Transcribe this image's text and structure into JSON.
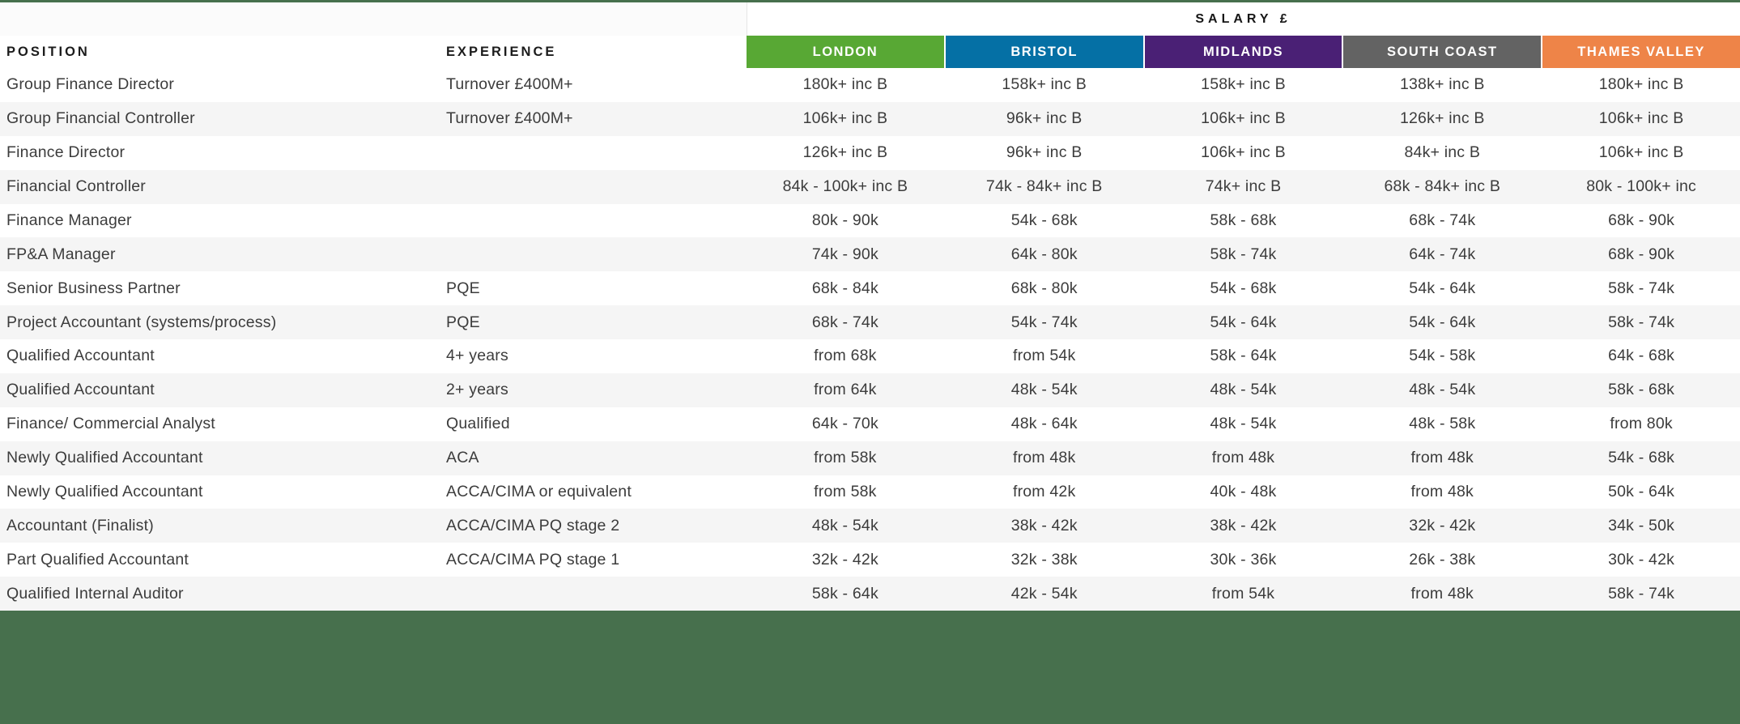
{
  "header": {
    "position_label": "POSITION",
    "experience_label": "EXPERIENCE",
    "salary_label": "SALARY £",
    "regions": [
      {
        "label": "LONDON",
        "color": "#58a834"
      },
      {
        "label": "BRISTOL",
        "color": "#0570a5"
      },
      {
        "label": "MIDLANDS",
        "color": "#4a2075"
      },
      {
        "label": "SOUTH COAST",
        "color": "#636363"
      },
      {
        "label": "THAMES VALLEY",
        "color": "#ee8448"
      }
    ]
  },
  "colors": {
    "top_bar": "#47704d",
    "footer": "#47704d",
    "row_alt": "#f5f5f5"
  },
  "rows": [
    {
      "position": "Group Finance Director",
      "experience": "Turnover £400M+",
      "salaries": [
        "180k+ inc B",
        "158k+ inc B",
        "158k+ inc B",
        "138k+ inc B",
        "180k+ inc B"
      ]
    },
    {
      "position": "Group Financial Controller",
      "experience": "Turnover £400M+",
      "salaries": [
        "106k+ inc B",
        "96k+ inc B",
        "106k+ inc B",
        "126k+ inc B",
        "106k+ inc B"
      ]
    },
    {
      "position": "Finance Director",
      "experience": "",
      "salaries": [
        "126k+ inc B",
        "96k+ inc B",
        "106k+ inc B",
        "84k+ inc B",
        "106k+ inc B"
      ]
    },
    {
      "position": "Financial Controller",
      "experience": "",
      "salaries": [
        "84k - 100k+ inc B",
        "74k - 84k+ inc B",
        "74k+ inc B",
        "68k - 84k+ inc B",
        "80k - 100k+ inc"
      ]
    },
    {
      "position": "Finance Manager",
      "experience": "",
      "salaries": [
        "80k - 90k",
        "54k - 68k",
        "58k - 68k",
        "68k - 74k",
        "68k - 90k"
      ]
    },
    {
      "position": "FP&A Manager",
      "experience": "",
      "salaries": [
        "74k - 90k",
        "64k - 80k",
        "58k - 74k",
        "64k - 74k",
        "68k - 90k"
      ]
    },
    {
      "position": "Senior Business Partner",
      "experience": "PQE",
      "salaries": [
        "68k - 84k",
        "68k - 80k",
        "54k - 68k",
        "54k - 64k",
        "58k - 74k"
      ]
    },
    {
      "position": "Project Accountant (systems/process)",
      "experience": "PQE",
      "salaries": [
        "68k - 74k",
        "54k - 74k",
        "54k - 64k",
        "54k - 64k",
        "58k - 74k"
      ]
    },
    {
      "position": "Qualified Accountant",
      "experience": "4+ years",
      "salaries": [
        "from 68k",
        "from 54k",
        "58k - 64k",
        "54k - 58k",
        "64k - 68k"
      ]
    },
    {
      "position": "Qualified Accountant",
      "experience": "2+ years",
      "salaries": [
        "from 64k",
        "48k - 54k",
        "48k - 54k",
        "48k - 54k",
        "58k - 68k"
      ]
    },
    {
      "position": "Finance/ Commercial Analyst",
      "experience": "Qualified",
      "salaries": [
        "64k - 70k",
        "48k - 64k",
        "48k - 54k",
        "48k - 58k",
        "from 80k"
      ]
    },
    {
      "position": "Newly Qualified Accountant",
      "experience": "ACA",
      "salaries": [
        "from 58k",
        "from 48k",
        "from 48k",
        "from 48k",
        "54k - 68k"
      ]
    },
    {
      "position": "Newly Qualified Accountant",
      "experience": "ACCA/CIMA or equivalent",
      "salaries": [
        "from 58k",
        "from 42k",
        "40k - 48k",
        "from 48k",
        "50k - 64k"
      ]
    },
    {
      "position": "Accountant (Finalist)",
      "experience": "ACCA/CIMA PQ stage 2",
      "salaries": [
        "48k - 54k",
        "38k - 42k",
        "38k - 42k",
        "32k - 42k",
        "34k - 50k"
      ]
    },
    {
      "position": "Part Qualified Accountant",
      "experience": "ACCA/CIMA PQ stage 1",
      "salaries": [
        "32k - 42k",
        "32k - 38k",
        "30k - 36k",
        "26k - 38k",
        "30k - 42k"
      ]
    },
    {
      "position": "Qualified Internal Auditor",
      "experience": "",
      "salaries": [
        "58k - 64k",
        "42k - 54k",
        "from 54k",
        "from 48k",
        "58k - 74k"
      ]
    }
  ]
}
